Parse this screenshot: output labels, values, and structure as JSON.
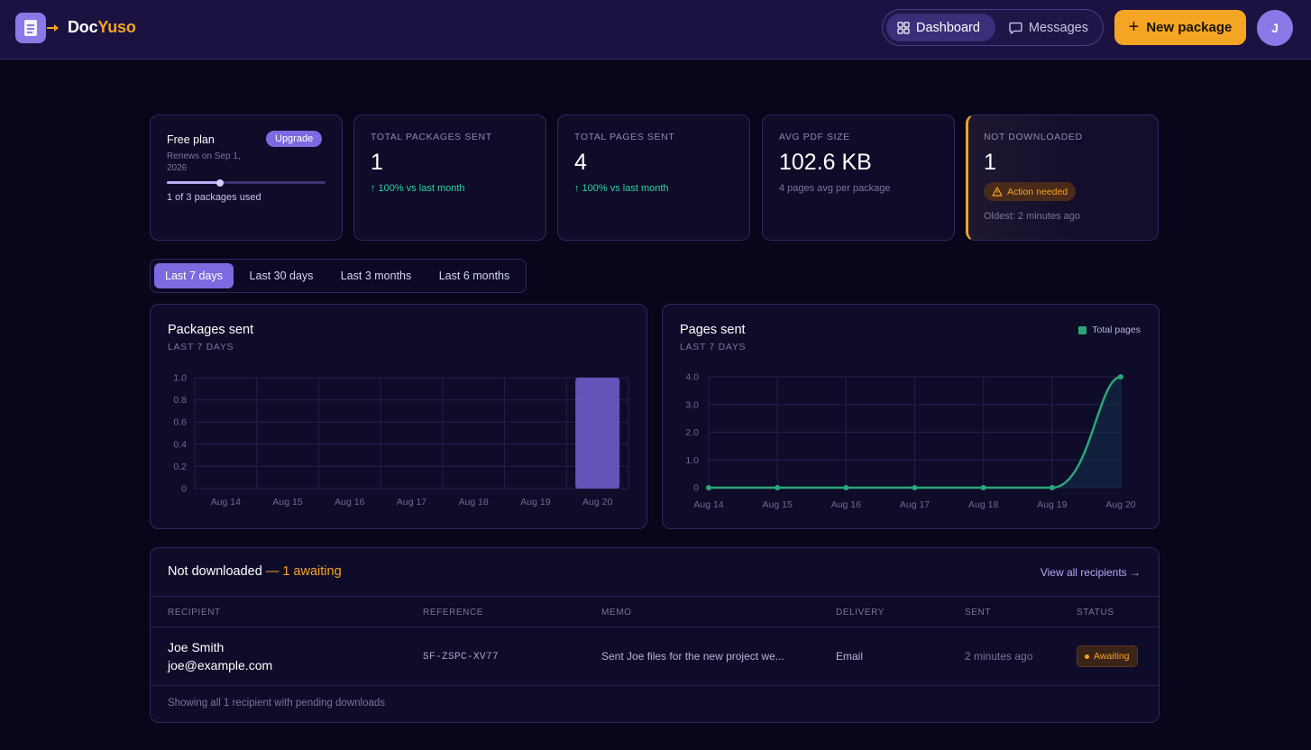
{
  "header": {
    "brand_part1": "Doc",
    "brand_part2": "Yuso",
    "nav": [
      {
        "label": "Dashboard",
        "icon": "grid-icon",
        "active": true
      },
      {
        "label": "Messages",
        "icon": "message-icon",
        "active": false
      }
    ],
    "new_package_label": "New package",
    "avatar_initial": "J"
  },
  "plan": {
    "name": "Free plan",
    "upgrade_label": "Upgrade",
    "renews": "Renews on Sep 1, 2026",
    "used_text": "1 of 3 packages used",
    "used_fraction": 0.333
  },
  "stats": [
    {
      "label": "TOTAL PACKAGES SENT",
      "value": "1",
      "sub": "↑ 100% vs last month"
    },
    {
      "label": "TOTAL PAGES SENT",
      "value": "4",
      "sub": "↑ 100% vs last month"
    },
    {
      "label": "AVG PDF SIZE",
      "value": "102.6 KB",
      "sub": "4 pages avg per package"
    }
  ],
  "not_downloaded_card": {
    "label": "NOT DOWNLOADED",
    "value": "1",
    "badge": "Action needed",
    "oldest": "Oldest: 2 minutes ago"
  },
  "range_tabs": [
    {
      "label": "Last 7 days",
      "active": true
    },
    {
      "label": "Last 30 days",
      "active": false
    },
    {
      "label": "Last 3 months",
      "active": false
    },
    {
      "label": "Last 6 months",
      "active": false
    }
  ],
  "colors": {
    "accent": "#7c6ae0",
    "amber": "#f5a524",
    "green": "#2aa678",
    "bar": "#6b5cc9"
  },
  "charts": {
    "packages": {
      "title": "Packages sent",
      "subtitle": "LAST 7 DAYS"
    },
    "pages": {
      "title": "Pages sent",
      "subtitle": "LAST 7 DAYS",
      "legend": "Total pages"
    }
  },
  "chart_data": [
    {
      "type": "bar",
      "title": "Packages sent",
      "subtitle": "LAST 7 DAYS",
      "categories": [
        "Aug 14",
        "Aug 15",
        "Aug 16",
        "Aug 17",
        "Aug 18",
        "Aug 19",
        "Aug 20"
      ],
      "values": [
        0,
        0,
        0,
        0,
        0,
        0,
        1
      ],
      "ylim": [
        0,
        1
      ],
      "yticks": [
        "0",
        "0.2",
        "0.4",
        "0.6",
        "0.8",
        "1.0"
      ],
      "grid": true
    },
    {
      "type": "area",
      "title": "Pages sent",
      "subtitle": "LAST 7 DAYS",
      "categories": [
        "Aug 14",
        "Aug 15",
        "Aug 16",
        "Aug 17",
        "Aug 18",
        "Aug 19",
        "Aug 20"
      ],
      "series": [
        {
          "name": "Total pages",
          "values": [
            0,
            0,
            0,
            0,
            0,
            0,
            4
          ]
        }
      ],
      "ylim": [
        0,
        4
      ],
      "yticks": [
        "0",
        "1.0",
        "2.0",
        "3.0",
        "4.0"
      ],
      "grid": true,
      "legend": "top-right"
    }
  ],
  "table": {
    "title": "Not downloaded",
    "awaiting": "— 1 awaiting",
    "link": "View all recipients →",
    "headers": [
      "RECIPIENT",
      "REFERENCE",
      "MEMO",
      "DELIVERY",
      "SENT",
      "STATUS"
    ],
    "rows": [
      {
        "name": "Joe Smith",
        "email": "joe@example.com",
        "reference": "SF-ZSPC-XV77",
        "memo": "Sent Joe files for the new project we...",
        "delivery": "Email",
        "sent": "2 minutes ago",
        "status": "Awaiting"
      }
    ],
    "footer": "Showing all 1 recipient with pending downloads"
  }
}
